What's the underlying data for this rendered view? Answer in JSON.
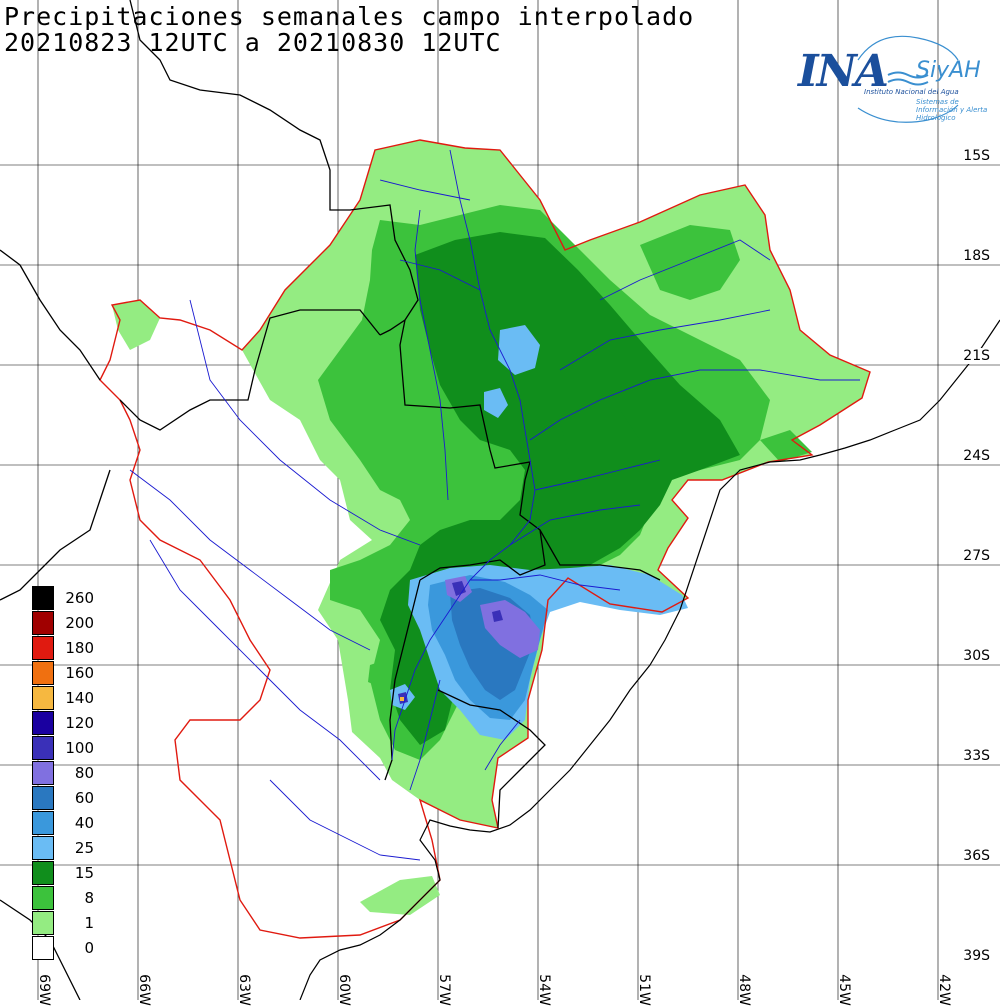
{
  "title": {
    "line1": "Precipitaciones semanales campo interpolado",
    "line2": "20210823 12UTC a 20210830 12UTC"
  },
  "logo": {
    "brand": "INA",
    "product": "SiyAH",
    "subtitle": "Instituto Nacional del Agua",
    "tagline": "Sistemas de Información y Alerta Hidrológico"
  },
  "lat_labels": [
    "15S",
    "18S",
    "21S",
    "24S",
    "27S",
    "30S",
    "33S",
    "36S",
    "39S"
  ],
  "lon_labels": [
    "69W",
    "66W",
    "63W",
    "60W",
    "57W",
    "54W",
    "51W",
    "48W",
    "45W",
    "42W"
  ],
  "legend": [
    {
      "label": "260",
      "color": "#000000"
    },
    {
      "label": "200",
      "color": "#a00000"
    },
    {
      "label": "180",
      "color": "#e01a10"
    },
    {
      "label": "160",
      "color": "#f07010"
    },
    {
      "label": "140",
      "color": "#f6b840"
    },
    {
      "label": "120",
      "color": "#1a00a0"
    },
    {
      "label": "100",
      "color": "#3a30b8"
    },
    {
      "label": "80",
      "color": "#8070e0"
    },
    {
      "label": "60",
      "color": "#2a78c0"
    },
    {
      "label": "40",
      "color": "#3a98dc"
    },
    {
      "label": "25",
      "color": "#6abcf4"
    },
    {
      "label": "15",
      "color": "#108e1c"
    },
    {
      "label": "8",
      "color": "#3cc23c"
    },
    {
      "label": "1",
      "color": "#94ec82"
    },
    {
      "label": "0",
      "color": "#ffffff"
    }
  ]
}
